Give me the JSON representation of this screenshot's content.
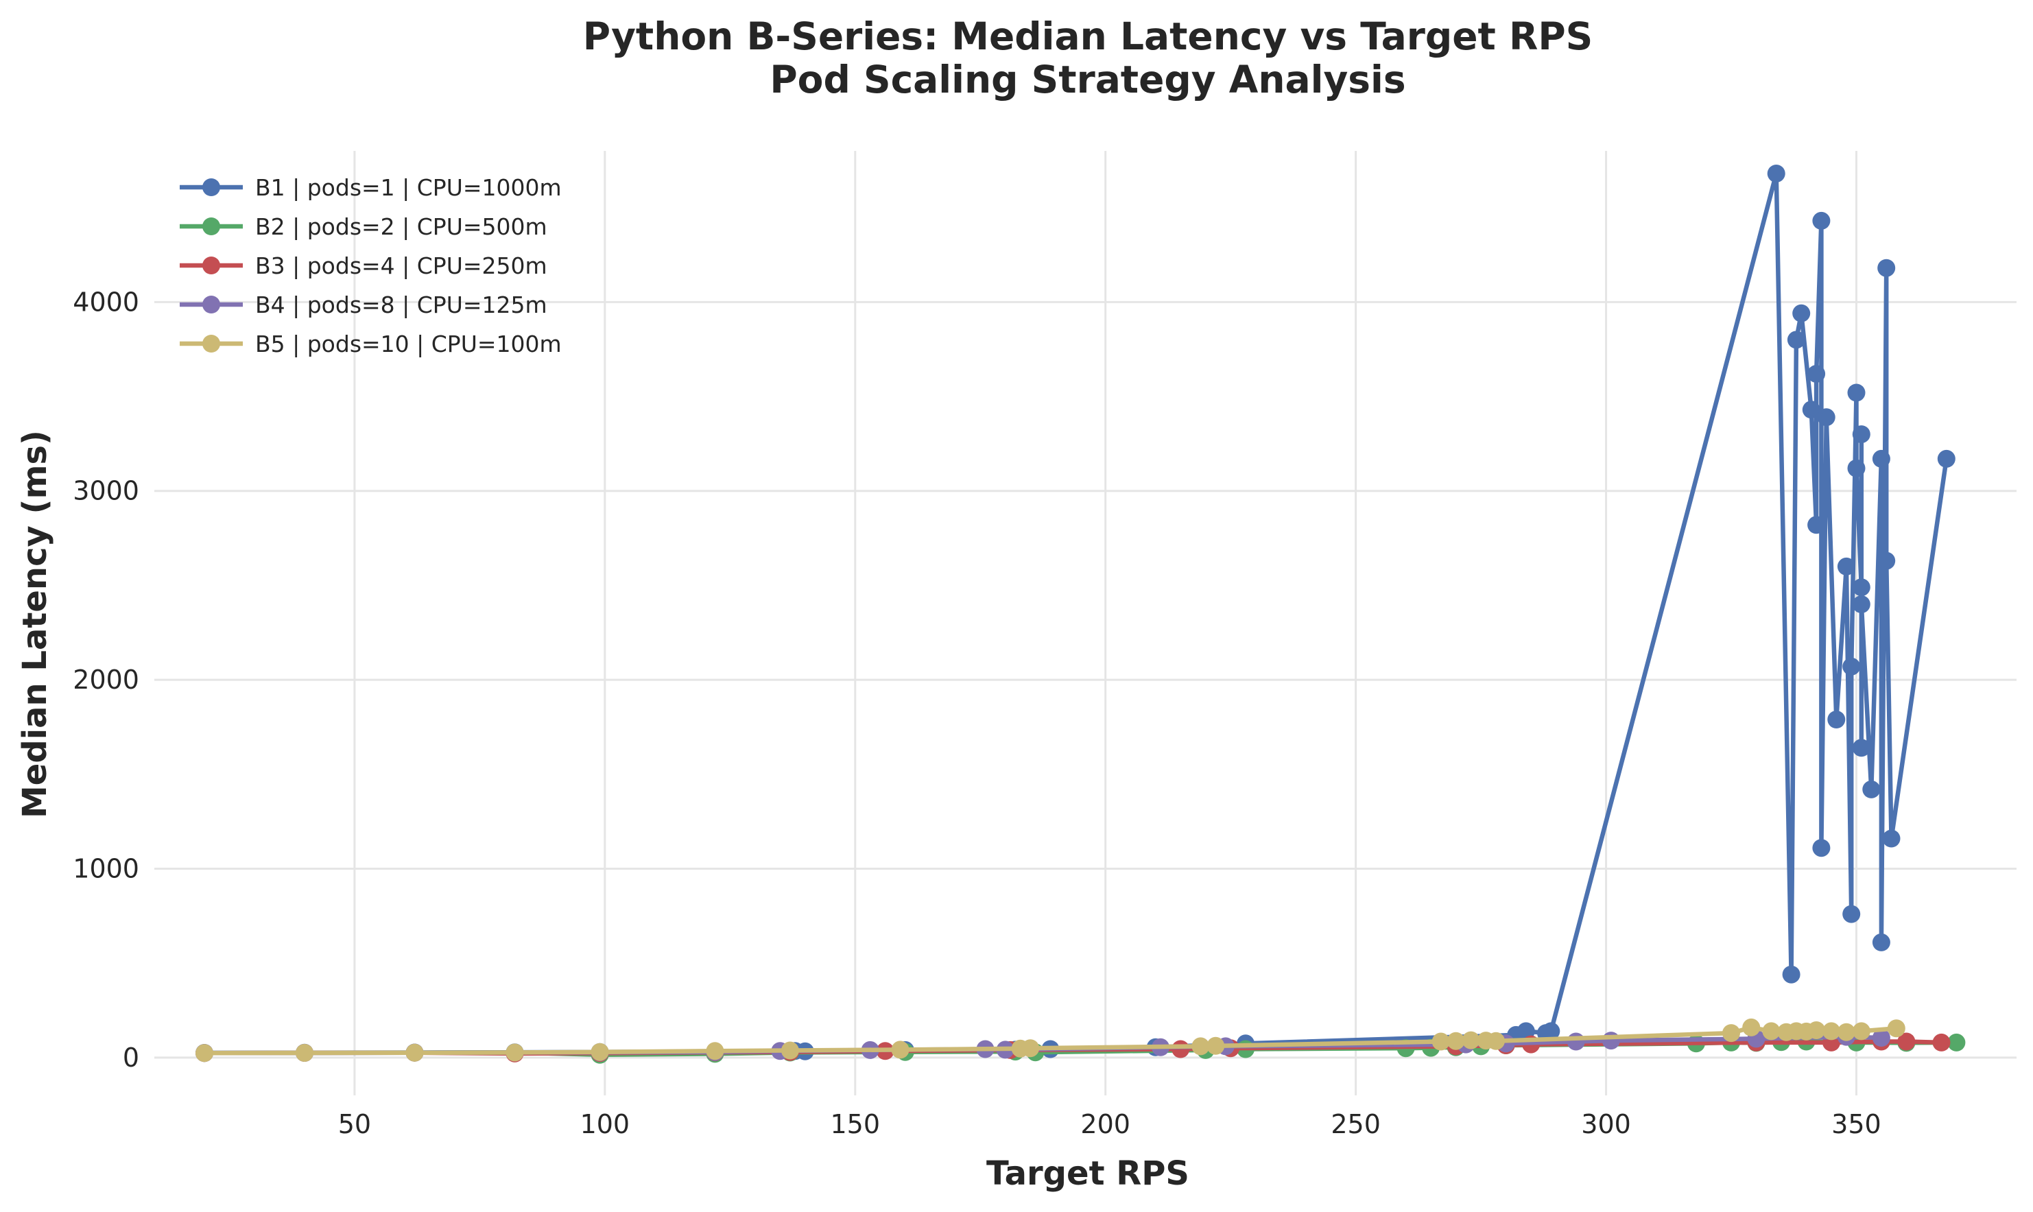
{
  "chart_data": {
    "type": "line",
    "title": "Python B-Series: Median Latency vs Target RPS",
    "subtitle": "Pod Scaling Strategy Analysis",
    "xlabel": "Target RPS",
    "ylabel": "Median Latency (ms)",
    "xlim": [
      10,
      382
    ],
    "ylim": [
      -200,
      4800
    ],
    "xticks": [
      50,
      100,
      150,
      200,
      250,
      300,
      350
    ],
    "yticks": [
      0,
      1000,
      2000,
      3000,
      4000
    ],
    "grid": true,
    "legend_position": "top-left",
    "series": [
      {
        "name": "B1 | pods=1 | CPU=1000m",
        "color": "#4c72b0",
        "points": [
          [
            20,
            25
          ],
          [
            40,
            26
          ],
          [
            62,
            27
          ],
          [
            82,
            28
          ],
          [
            99,
            30
          ],
          [
            122,
            32
          ],
          [
            138,
            35
          ],
          [
            140,
            33
          ],
          [
            160,
            40
          ],
          [
            182,
            42
          ],
          [
            189,
            45
          ],
          [
            210,
            55
          ],
          [
            228,
            75
          ],
          [
            282,
            120
          ],
          [
            284,
            140
          ],
          [
            288,
            130
          ],
          [
            289,
            140
          ],
          [
            334,
            4680
          ],
          [
            337,
            440
          ],
          [
            338,
            3800
          ],
          [
            339,
            3940
          ],
          [
            341,
            3430
          ],
          [
            342,
            2820
          ],
          [
            342,
            3620
          ],
          [
            343,
            4430
          ],
          [
            343,
            1110
          ],
          [
            344,
            3390
          ],
          [
            346,
            1790
          ],
          [
            348,
            2600
          ],
          [
            349,
            760
          ],
          [
            349,
            2070
          ],
          [
            350,
            3520
          ],
          [
            350,
            3120
          ],
          [
            351,
            2490
          ],
          [
            351,
            3300
          ],
          [
            351,
            1640
          ],
          [
            351,
            2400
          ],
          [
            353,
            1420
          ],
          [
            355,
            3170
          ],
          [
            355,
            610
          ],
          [
            356,
            4180
          ],
          [
            356,
            2630
          ],
          [
            357,
            1160
          ],
          [
            368,
            3170
          ]
        ]
      },
      {
        "name": "B2 | pods=2 | CPU=500m",
        "color": "#55a868",
        "points": [
          [
            20,
            24
          ],
          [
            40,
            25
          ],
          [
            62,
            26
          ],
          [
            82,
            27
          ],
          [
            99,
            15
          ],
          [
            122,
            20
          ],
          [
            137,
            27
          ],
          [
            160,
            30
          ],
          [
            182,
            32
          ],
          [
            186,
            28
          ],
          [
            220,
            40
          ],
          [
            228,
            45
          ],
          [
            260,
            50
          ],
          [
            265,
            52
          ],
          [
            270,
            55
          ],
          [
            275,
            60
          ],
          [
            280,
            65
          ],
          [
            318,
            75
          ],
          [
            325,
            80
          ],
          [
            330,
            78
          ],
          [
            335,
            82
          ],
          [
            340,
            85
          ],
          [
            350,
            80
          ],
          [
            360,
            78
          ],
          [
            370,
            80
          ]
        ]
      },
      {
        "name": "B3 | pods=4 | CPU=250m",
        "color": "#c44e52",
        "points": [
          [
            20,
            24
          ],
          [
            40,
            25
          ],
          [
            62,
            26
          ],
          [
            82,
            22
          ],
          [
            99,
            24
          ],
          [
            122,
            28
          ],
          [
            137,
            30
          ],
          [
            156,
            35
          ],
          [
            181,
            40
          ],
          [
            215,
            45
          ],
          [
            225,
            50
          ],
          [
            270,
            60
          ],
          [
            280,
            65
          ],
          [
            285,
            70
          ],
          [
            330,
            80
          ],
          [
            345,
            80
          ],
          [
            355,
            85
          ],
          [
            360,
            85
          ],
          [
            367,
            80
          ]
        ]
      },
      {
        "name": "B4 | pods=8 | CPU=125m",
        "color": "#8172b2",
        "points": [
          [
            20,
            24
          ],
          [
            40,
            25
          ],
          [
            62,
            26
          ],
          [
            82,
            27
          ],
          [
            99,
            28
          ],
          [
            122,
            30
          ],
          [
            135,
            35
          ],
          [
            153,
            40
          ],
          [
            176,
            45
          ],
          [
            180,
            42
          ],
          [
            211,
            55
          ],
          [
            224,
            60
          ],
          [
            272,
            70
          ],
          [
            280,
            75
          ],
          [
            294,
            85
          ],
          [
            301,
            90
          ],
          [
            330,
            100
          ],
          [
            348,
            110
          ],
          [
            355,
            105
          ]
        ]
      },
      {
        "name": "B5 | pods=10 | CPU=100m",
        "color": "#ccb974",
        "points": [
          [
            20,
            24
          ],
          [
            40,
            25
          ],
          [
            62,
            26
          ],
          [
            82,
            27
          ],
          [
            99,
            30
          ],
          [
            122,
            35
          ],
          [
            137,
            38
          ],
          [
            159,
            42
          ],
          [
            183,
            48
          ],
          [
            185,
            50
          ],
          [
            219,
            60
          ],
          [
            222,
            62
          ],
          [
            267,
            85
          ],
          [
            270,
            88
          ],
          [
            273,
            92
          ],
          [
            276,
            90
          ],
          [
            278,
            88
          ],
          [
            325,
            130
          ],
          [
            329,
            160
          ],
          [
            333,
            140
          ],
          [
            336,
            135
          ],
          [
            338,
            140
          ],
          [
            340,
            138
          ],
          [
            342,
            145
          ],
          [
            345,
            140
          ],
          [
            348,
            135
          ],
          [
            351,
            140
          ],
          [
            358,
            155
          ]
        ]
      }
    ]
  }
}
